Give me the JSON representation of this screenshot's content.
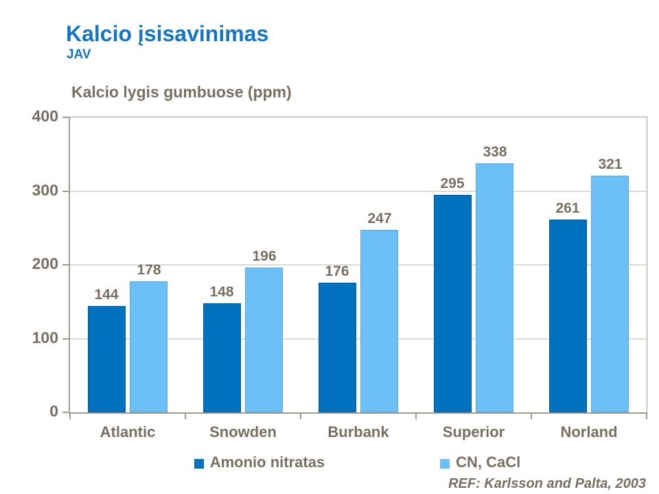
{
  "header": {
    "title": "Kalcio įsisavinimas",
    "subtitle": "JAV"
  },
  "chart_data": {
    "type": "bar",
    "title": "Kalcio lygis gumbuose (ppm)",
    "categories": [
      "Atlantic",
      "Snowden",
      "Burbank",
      "Superior",
      "Norland"
    ],
    "series": [
      {
        "name": "Amonio nitratas",
        "values": [
          144,
          148,
          176,
          295,
          261
        ],
        "color": "#0272BE",
        "border_color": "#015E9E"
      },
      {
        "name": "CN, CaCl",
        "values": [
          178,
          196,
          247,
          338,
          321
        ],
        "color": "#6DBFF7",
        "border_color": "#58A8DE"
      }
    ],
    "ylim": [
      0,
      400
    ],
    "yticks": [
      0,
      100,
      200,
      300,
      400
    ],
    "grid": true,
    "legend_position": "bottom",
    "data_labels": true
  },
  "footer": {
    "reference": "REF: Karlsson and Palta, 2003"
  },
  "colors": {
    "title_blue": "#1375C4",
    "text_brown": "#7A6E60",
    "axis_gray": "#A29A8E",
    "grid_gray": "#BCB5AB",
    "background": "#FFFFFF"
  }
}
